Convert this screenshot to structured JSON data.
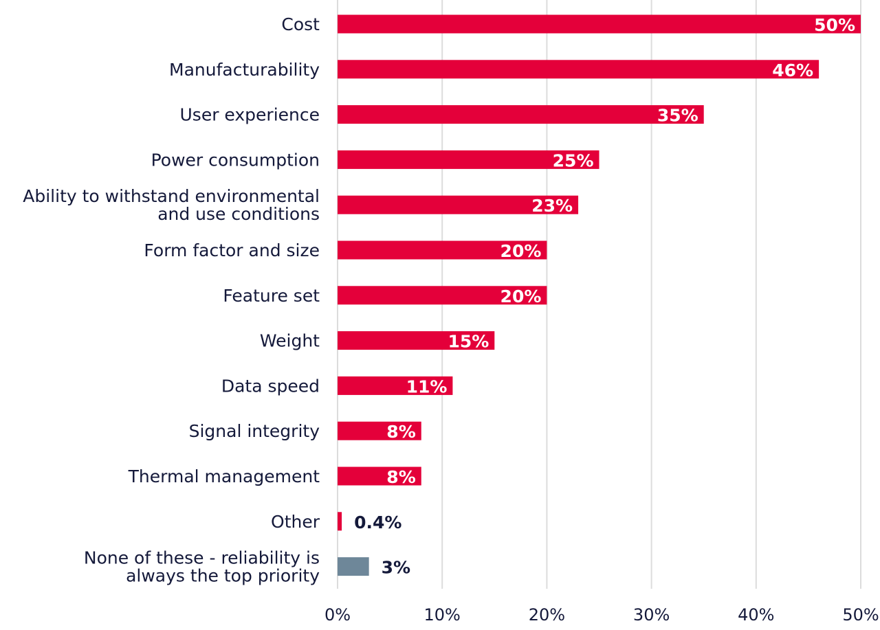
{
  "chart_data": {
    "type": "bar",
    "orientation": "horizontal",
    "categories": [
      "Cost",
      "Manufacturability",
      "User experience",
      "Power consumption",
      "Ability to withstand environmental\nand use conditions",
      "Form factor and size",
      "Feature set",
      "Weight",
      "Data speed",
      "Signal integrity",
      "Thermal management",
      "Other",
      "None of these - reliability is\nalways the top priority"
    ],
    "values": [
      50,
      46,
      35,
      25,
      23,
      20,
      20,
      15,
      11,
      8,
      8,
      0.4,
      3
    ],
    "data_labels": [
      "50%",
      "46%",
      "35%",
      "25%",
      "23%",
      "20%",
      "20%",
      "15%",
      "11%",
      "8%",
      "8%",
      "0.4%",
      "3%"
    ],
    "bar_colors": [
      "#E4003A",
      "#E4003A",
      "#E4003A",
      "#E4003A",
      "#E4003A",
      "#E4003A",
      "#E4003A",
      "#E4003A",
      "#E4003A",
      "#E4003A",
      "#E4003A",
      "#E4003A",
      "#6E8799"
    ],
    "xlim": [
      0,
      50
    ],
    "x_ticks": [
      0,
      10,
      20,
      30,
      40,
      50
    ],
    "x_tick_labels": [
      "0%",
      "10%",
      "20%",
      "30%",
      "40%",
      "50%"
    ],
    "grid": "vertical",
    "text_color": "#14193A",
    "title": "",
    "xlabel": "",
    "ylabel": ""
  }
}
